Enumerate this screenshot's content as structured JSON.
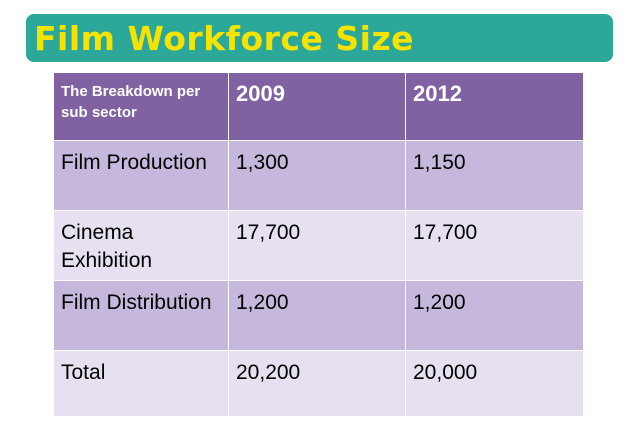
{
  "slide": {
    "title": "Film Workforce Size"
  },
  "table": {
    "corner_header": "The Breakdown per sub sector",
    "years": [
      "2009",
      "2012"
    ],
    "rows": [
      {
        "label": "Film Production",
        "values": [
          "1,300",
          "1,150"
        ]
      },
      {
        "label": "Cinema Exhibition",
        "values": [
          "17,700",
          "17,700"
        ]
      },
      {
        "label": "Film Distribution",
        "values": [
          "1,200",
          "1,200"
        ]
      },
      {
        "label": "Total",
        "values": [
          "20,200",
          "20,000"
        ]
      }
    ]
  },
  "colors": {
    "title_bar": "#2ba89a",
    "title_text": "#f5e400",
    "header": "#8062a2",
    "row_dark": "#c6b8dc",
    "row_light": "#e7e0f1"
  }
}
